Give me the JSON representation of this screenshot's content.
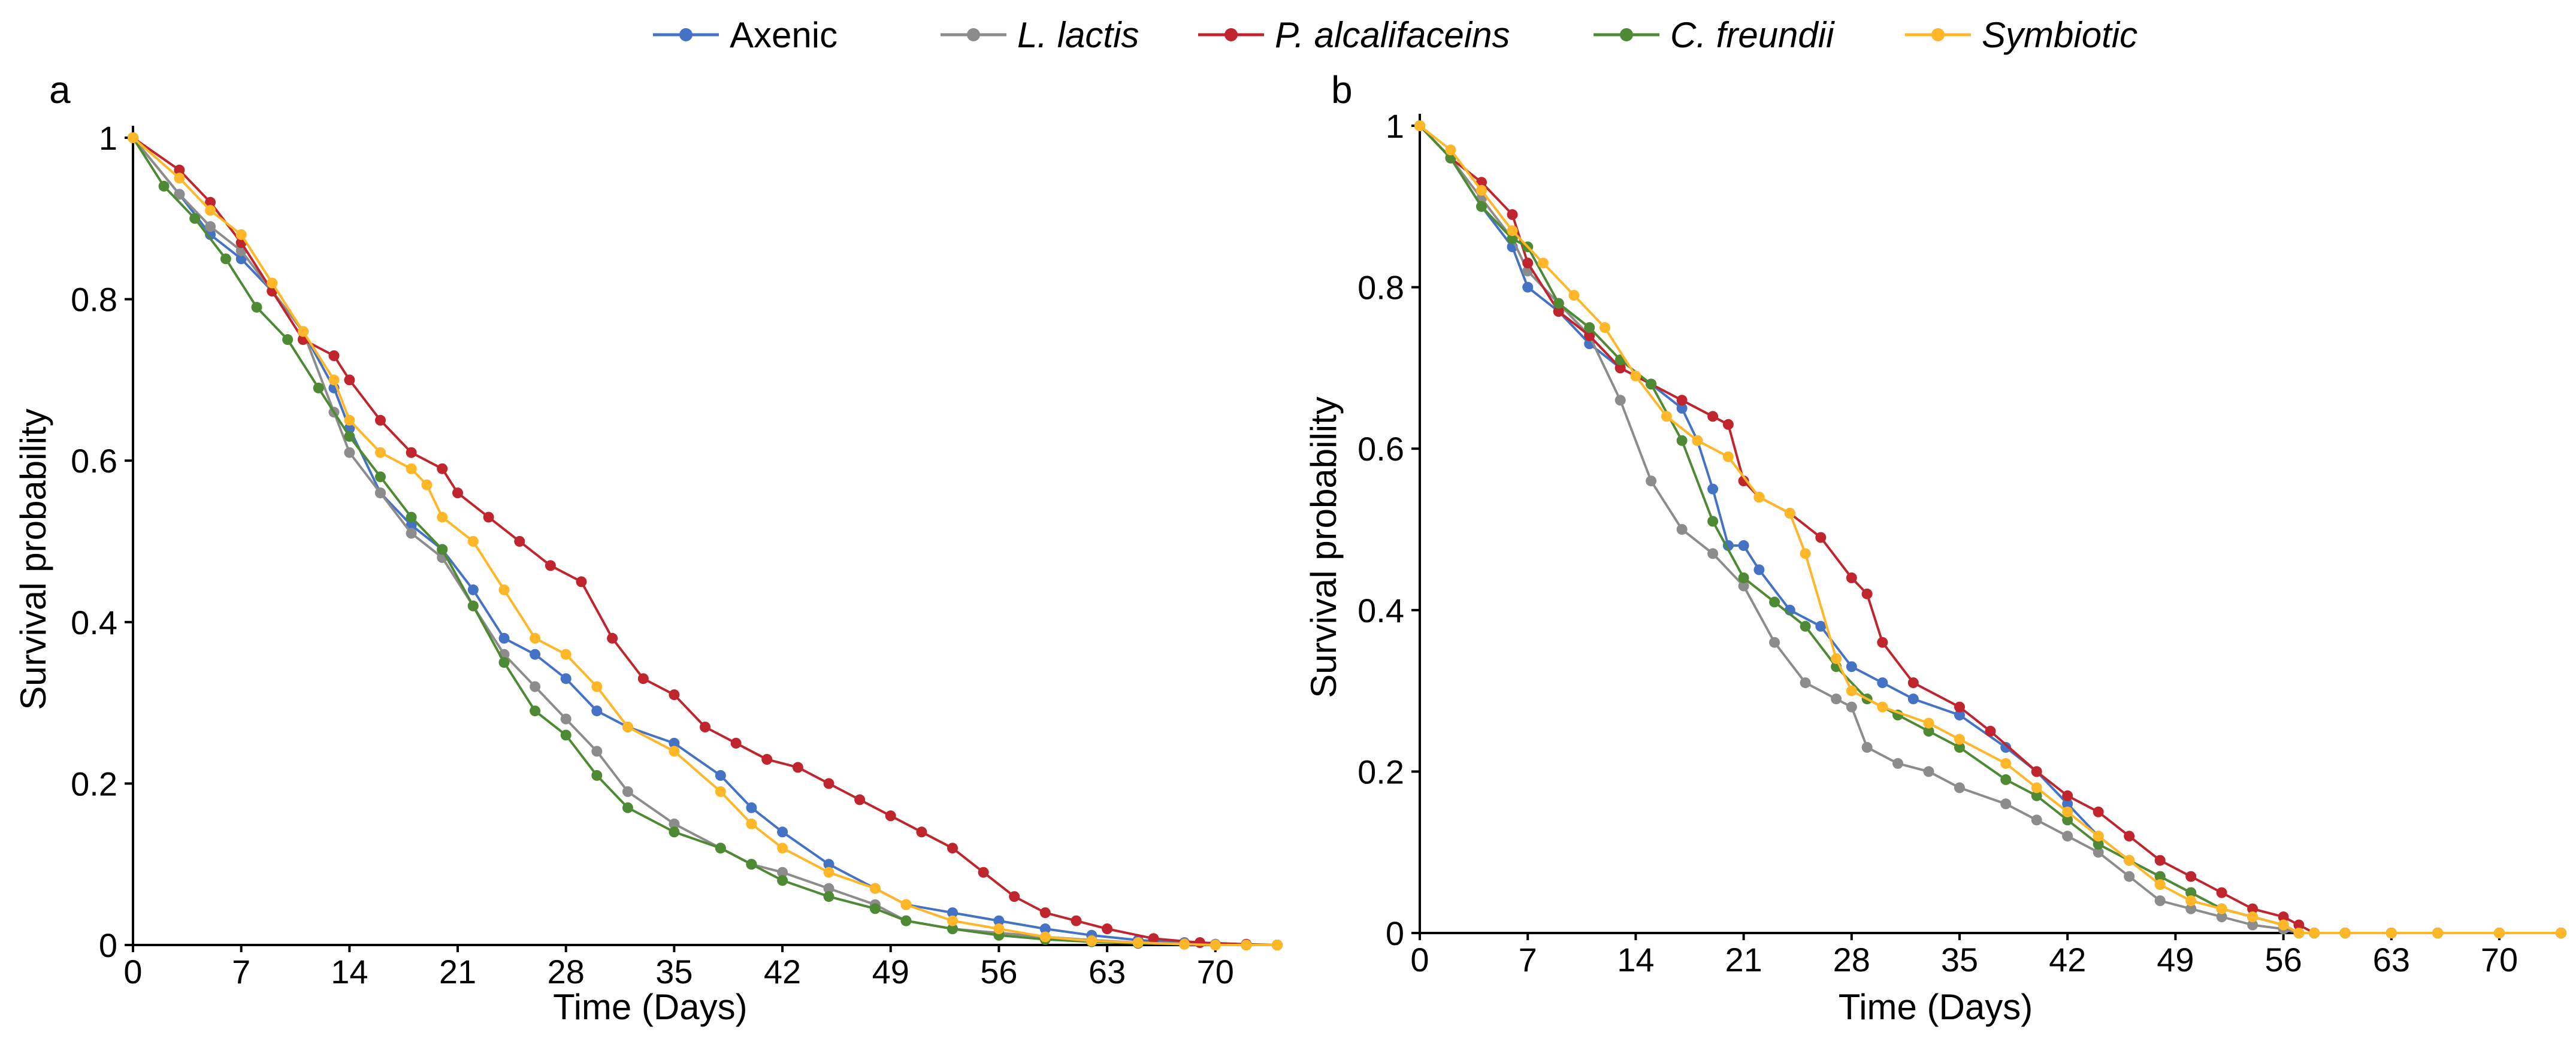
{
  "legend": [
    {
      "name": "Axenic",
      "color": "#4472C4",
      "italic": false
    },
    {
      "name": "L. lactis",
      "color": "#8C8C8C",
      "italic": true
    },
    {
      "name": "P. alcalifaceins",
      "color": "#C0242C",
      "italic": true
    },
    {
      "name": "C. freundii",
      "color": "#4E8A34",
      "italic": true
    },
    {
      "name": "Symbiotic",
      "color": "#FFB627",
      "italic": true
    }
  ],
  "chart_data": [
    {
      "panel_label": "a",
      "type": "line",
      "xlabel": "Time (Days)",
      "ylabel": "Survival probability",
      "xlim": [
        0,
        74
      ],
      "ylim": [
        0,
        1
      ],
      "xticks": [
        0,
        7,
        14,
        21,
        28,
        35,
        42,
        49,
        56,
        63,
        70
      ],
      "xtick_labels": [
        "0",
        "7",
        "14",
        "21",
        "28",
        "35",
        "42",
        "49",
        "56",
        "63",
        "70"
      ],
      "yticks": [
        0,
        0.2,
        0.4,
        0.6,
        0.8,
        1
      ],
      "ytick_labels": [
        "0",
        "0.2",
        "0.4",
        "0.6",
        "0.8",
        "1"
      ],
      "series": [
        {
          "name": "Axenic",
          "color": "#4472C4",
          "x": [
            0,
            3,
            5,
            7,
            9,
            11,
            13,
            14,
            16,
            18,
            20,
            22,
            24,
            26,
            28,
            30,
            32,
            35,
            38,
            40,
            42,
            45,
            48,
            50,
            53,
            56,
            59,
            62,
            65,
            68,
            70,
            72,
            74
          ],
          "y": [
            1.0,
            0.93,
            0.88,
            0.85,
            0.81,
            0.76,
            0.69,
            0.64,
            0.56,
            0.52,
            0.49,
            0.44,
            0.38,
            0.36,
            0.33,
            0.29,
            0.27,
            0.25,
            0.21,
            0.17,
            0.14,
            0.1,
            0.07,
            0.05,
            0.04,
            0.03,
            0.02,
            0.012,
            0.006,
            0.003,
            0.001,
            0.0,
            0.0
          ]
        },
        {
          "name": "L. lactis",
          "color": "#8C8C8C",
          "x": [
            0,
            3,
            5,
            7,
            9,
            11,
            13,
            14,
            16,
            18,
            20,
            22,
            24,
            26,
            28,
            30,
            32,
            35,
            38,
            40,
            42,
            45,
            48,
            50,
            53,
            56,
            59,
            62,
            65,
            68,
            70,
            72,
            74
          ],
          "y": [
            1.0,
            0.93,
            0.89,
            0.86,
            0.81,
            0.76,
            0.66,
            0.61,
            0.56,
            0.51,
            0.48,
            0.42,
            0.36,
            0.32,
            0.28,
            0.24,
            0.19,
            0.15,
            0.12,
            0.1,
            0.09,
            0.07,
            0.05,
            0.03,
            0.02,
            0.015,
            0.01,
            0.006,
            0.003,
            0.002,
            0.001,
            0.0,
            0.0
          ]
        },
        {
          "name": "P. alcalifaceins",
          "color": "#C0242C",
          "x": [
            0,
            3,
            5,
            7,
            9,
            11,
            13,
            14,
            16,
            18,
            20,
            21,
            23,
            25,
            27,
            29,
            31,
            33,
            35,
            37,
            39,
            41,
            43,
            45,
            47,
            49,
            51,
            53,
            55,
            57,
            59,
            61,
            63,
            66,
            69,
            72,
            74
          ],
          "y": [
            1.0,
            0.96,
            0.92,
            0.87,
            0.81,
            0.75,
            0.73,
            0.7,
            0.65,
            0.61,
            0.59,
            0.56,
            0.53,
            0.5,
            0.47,
            0.45,
            0.38,
            0.33,
            0.31,
            0.27,
            0.25,
            0.23,
            0.22,
            0.2,
            0.18,
            0.16,
            0.14,
            0.12,
            0.09,
            0.06,
            0.04,
            0.03,
            0.02,
            0.008,
            0.003,
            0.001,
            0.0
          ]
        },
        {
          "name": "C. freundii",
          "color": "#4E8A34",
          "x": [
            0,
            2,
            4,
            6,
            8,
            10,
            12,
            14,
            16,
            18,
            20,
            22,
            24,
            26,
            28,
            30,
            32,
            35,
            38,
            40,
            42,
            45,
            48,
            50,
            53,
            56,
            59,
            62,
            65,
            68,
            70,
            72,
            74
          ],
          "y": [
            1.0,
            0.94,
            0.9,
            0.85,
            0.79,
            0.75,
            0.69,
            0.63,
            0.58,
            0.53,
            0.49,
            0.42,
            0.35,
            0.29,
            0.26,
            0.21,
            0.17,
            0.14,
            0.12,
            0.1,
            0.08,
            0.06,
            0.045,
            0.03,
            0.02,
            0.012,
            0.007,
            0.004,
            0.002,
            0.001,
            0.0,
            0.0,
            0.0
          ]
        },
        {
          "name": "Symbiotic",
          "color": "#FFB627",
          "x": [
            0,
            3,
            5,
            7,
            9,
            11,
            13,
            14,
            16,
            18,
            19,
            20,
            22,
            24,
            26,
            28,
            30,
            32,
            35,
            38,
            40,
            42,
            45,
            48,
            50,
            53,
            56,
            59,
            62,
            65,
            68,
            70,
            72,
            74
          ],
          "y": [
            1.0,
            0.95,
            0.91,
            0.88,
            0.82,
            0.76,
            0.7,
            0.65,
            0.61,
            0.59,
            0.57,
            0.53,
            0.5,
            0.44,
            0.38,
            0.36,
            0.32,
            0.27,
            0.24,
            0.19,
            0.15,
            0.12,
            0.09,
            0.07,
            0.05,
            0.03,
            0.02,
            0.01,
            0.005,
            0.003,
            0.001,
            0.0,
            0.0,
            0.0
          ]
        }
      ]
    },
    {
      "panel_label": "b",
      "type": "line",
      "xlabel": "Time (Days)",
      "ylabel": "Survival probability",
      "xlim": [
        0,
        74
      ],
      "ylim": [
        0,
        1
      ],
      "xticks": [
        0,
        7,
        14,
        21,
        28,
        35,
        42,
        49,
        56,
        63,
        70
      ],
      "xtick_labels": [
        "0",
        "7",
        "14",
        "21",
        "28",
        "35",
        "42",
        "49",
        "56",
        "63",
        "70"
      ],
      "yticks": [
        0,
        0.2,
        0.4,
        0.6,
        0.8,
        1
      ],
      "ytick_labels": [
        "0",
        "0.2",
        "0.4",
        "0.6",
        "0.8",
        "1"
      ],
      "series": [
        {
          "name": "Axenic",
          "color": "#4472C4",
          "x": [
            0,
            2,
            4,
            6,
            7,
            9,
            11,
            13,
            15,
            17,
            18,
            19,
            20,
            21,
            22,
            24,
            26,
            28,
            30,
            32,
            35,
            38,
            40,
            42,
            44,
            46,
            48,
            50,
            52,
            54,
            56,
            57,
            58,
            60,
            63,
            66,
            70,
            74
          ],
          "y": [
            1.0,
            0.96,
            0.9,
            0.85,
            0.8,
            0.77,
            0.73,
            0.7,
            0.68,
            0.65,
            0.61,
            0.55,
            0.48,
            0.48,
            0.45,
            0.4,
            0.38,
            0.33,
            0.31,
            0.29,
            0.27,
            0.23,
            0.2,
            0.16,
            0.12,
            0.09,
            0.07,
            0.05,
            0.03,
            0.02,
            0.01,
            0.0,
            0.0,
            0.0,
            0.0,
            0.0,
            0.0,
            0.0
          ]
        },
        {
          "name": "L. lactis",
          "color": "#8C8C8C",
          "x": [
            0,
            2,
            4,
            6,
            7,
            9,
            11,
            13,
            15,
            17,
            19,
            21,
            23,
            25,
            27,
            28,
            29,
            31,
            33,
            35,
            38,
            40,
            42,
            44,
            46,
            48,
            50,
            52,
            54,
            56,
            57,
            58,
            60,
            63,
            66,
            70,
            74
          ],
          "y": [
            1.0,
            0.96,
            0.91,
            0.86,
            0.82,
            0.78,
            0.74,
            0.66,
            0.56,
            0.5,
            0.47,
            0.43,
            0.36,
            0.31,
            0.29,
            0.28,
            0.23,
            0.21,
            0.2,
            0.18,
            0.16,
            0.14,
            0.12,
            0.1,
            0.07,
            0.04,
            0.03,
            0.02,
            0.01,
            0.005,
            0.0,
            0.0,
            0.0,
            0.0,
            0.0,
            0.0,
            0.0
          ]
        },
        {
          "name": "P. alcalifaceins",
          "color": "#C0242C",
          "x": [
            0,
            2,
            4,
            6,
            7,
            9,
            11,
            13,
            15,
            17,
            19,
            20,
            21,
            22,
            24,
            26,
            28,
            29,
            30,
            32,
            35,
            37,
            40,
            42,
            44,
            46,
            48,
            50,
            52,
            54,
            56,
            57,
            58,
            60,
            63,
            66,
            70,
            74
          ],
          "y": [
            1.0,
            0.96,
            0.93,
            0.89,
            0.83,
            0.77,
            0.74,
            0.7,
            0.68,
            0.66,
            0.64,
            0.63,
            0.56,
            0.54,
            0.52,
            0.49,
            0.44,
            0.42,
            0.36,
            0.31,
            0.28,
            0.25,
            0.2,
            0.17,
            0.15,
            0.12,
            0.09,
            0.07,
            0.05,
            0.03,
            0.02,
            0.01,
            0.0,
            0.0,
            0.0,
            0.0,
            0.0,
            0.0
          ]
        },
        {
          "name": "C. freundii",
          "color": "#4E8A34",
          "x": [
            0,
            2,
            4,
            6,
            7,
            9,
            11,
            13,
            15,
            17,
            19,
            21,
            23,
            25,
            27,
            29,
            31,
            33,
            35,
            38,
            40,
            42,
            44,
            46,
            48,
            50,
            52,
            54,
            56,
            57,
            58,
            60,
            63,
            66,
            70,
            74
          ],
          "y": [
            1.0,
            0.96,
            0.9,
            0.86,
            0.85,
            0.78,
            0.75,
            0.71,
            0.68,
            0.61,
            0.51,
            0.44,
            0.41,
            0.38,
            0.33,
            0.29,
            0.27,
            0.25,
            0.23,
            0.19,
            0.17,
            0.14,
            0.11,
            0.09,
            0.07,
            0.05,
            0.03,
            0.02,
            0.01,
            0.0,
            0.0,
            0.0,
            0.0,
            0.0,
            0.0,
            0.0
          ]
        },
        {
          "name": "Symbiotic",
          "color": "#FFB627",
          "x": [
            0,
            2,
            4,
            6,
            8,
            10,
            12,
            14,
            16,
            18,
            20,
            22,
            24,
            25,
            27,
            28,
            30,
            33,
            35,
            38,
            40,
            42,
            44,
            46,
            48,
            50,
            52,
            54,
            56,
            57,
            58,
            60,
            63,
            66,
            70,
            74
          ],
          "y": [
            1.0,
            0.97,
            0.92,
            0.87,
            0.83,
            0.79,
            0.75,
            0.69,
            0.64,
            0.61,
            0.59,
            0.54,
            0.52,
            0.47,
            0.34,
            0.3,
            0.28,
            0.26,
            0.24,
            0.21,
            0.18,
            0.15,
            0.12,
            0.09,
            0.06,
            0.04,
            0.03,
            0.02,
            0.01,
            0.0,
            0.0,
            0.0,
            0.0,
            0.0,
            0.0,
            0.0
          ]
        }
      ]
    }
  ]
}
